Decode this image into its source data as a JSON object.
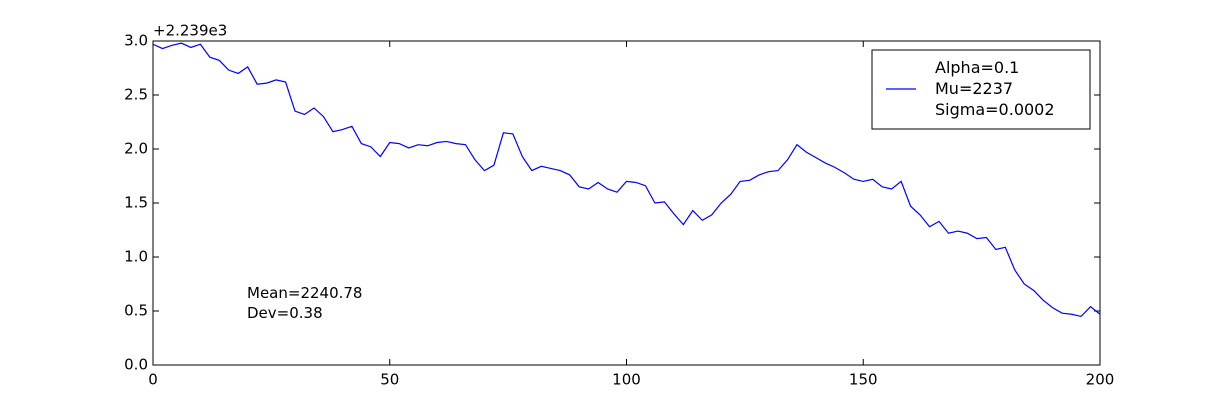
{
  "chart_data": {
    "type": "line",
    "y_offset_label": "+2.239e3",
    "annotation": "Mean=2240.78\nDev=0.38",
    "x": [
      0,
      2,
      4,
      6,
      8,
      10,
      12,
      14,
      16,
      18,
      20,
      22,
      24,
      26,
      28,
      30,
      32,
      34,
      36,
      38,
      40,
      42,
      44,
      46,
      48,
      50,
      52,
      54,
      56,
      58,
      60,
      62,
      64,
      66,
      68,
      70,
      72,
      74,
      76,
      78,
      80,
      82,
      84,
      86,
      88,
      90,
      92,
      94,
      96,
      98,
      100,
      102,
      104,
      106,
      108,
      110,
      112,
      114,
      116,
      118,
      120,
      122,
      124,
      126,
      128,
      130,
      132,
      134,
      136,
      138,
      140,
      142,
      144,
      146,
      148,
      150,
      152,
      154,
      156,
      158,
      160,
      162,
      164,
      166,
      168,
      170,
      172,
      174,
      176,
      178,
      180,
      182,
      184,
      186,
      188,
      190,
      192,
      194,
      196,
      198,
      200
    ],
    "series": [
      {
        "name": "Alpha=0.1\nMu=2237\nSigma=0.0002",
        "color": "#0000ff",
        "values": [
          2.97,
          2.93,
          2.96,
          2.98,
          2.94,
          2.97,
          2.85,
          2.82,
          2.73,
          2.7,
          2.76,
          2.6,
          2.61,
          2.64,
          2.62,
          2.35,
          2.32,
          2.38,
          2.3,
          2.16,
          2.18,
          2.21,
          2.05,
          2.02,
          1.93,
          2.06,
          2.05,
          2.01,
          2.04,
          2.03,
          2.06,
          2.07,
          2.05,
          2.04,
          1.9,
          1.8,
          1.85,
          2.15,
          2.14,
          1.93,
          1.8,
          1.84,
          1.82,
          1.8,
          1.76,
          1.65,
          1.63,
          1.69,
          1.63,
          1.6,
          1.7,
          1.69,
          1.66,
          1.5,
          1.51,
          1.4,
          1.3,
          1.43,
          1.34,
          1.39,
          1.5,
          1.58,
          1.7,
          1.71,
          1.76,
          1.79,
          1.8,
          1.9,
          2.04,
          1.97,
          1.92,
          1.87,
          1.83,
          1.78,
          1.72,
          1.7,
          1.72,
          1.65,
          1.63,
          1.7,
          1.47,
          1.39,
          1.28,
          1.33,
          1.22,
          1.24,
          1.22,
          1.17,
          1.18,
          1.07,
          1.09,
          0.88,
          0.75,
          0.69,
          0.6,
          0.53,
          0.48,
          0.47,
          0.45,
          0.54,
          0.47
        ]
      }
    ],
    "xlim": [
      0,
      200
    ],
    "xticks": [
      0,
      50,
      100,
      150,
      200
    ],
    "ylim": [
      0,
      3
    ],
    "yticks": [
      {
        "value": 0,
        "label": "0.0"
      },
      0.5,
      {
        "value": 1,
        "label": "1.0"
      },
      1.5,
      {
        "value": 2,
        "label": "2.0"
      },
      2.5,
      {
        "value": 3,
        "label": "3.0"
      }
    ],
    "legend": "upper right",
    "grid": false
  }
}
